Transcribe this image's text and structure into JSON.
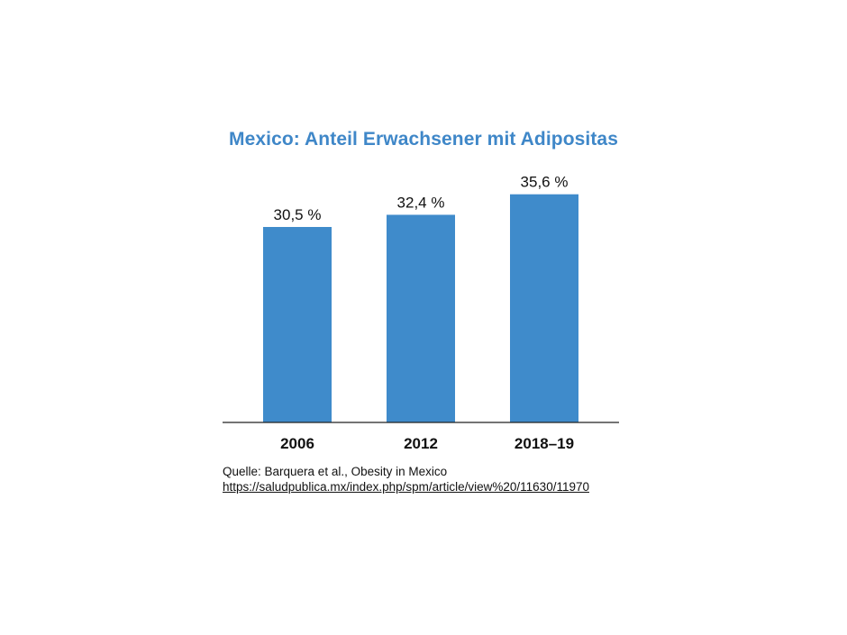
{
  "chart_data": {
    "type": "bar",
    "title": "Mexico: Anteil Erwachsener mit Adipositas",
    "categories": [
      "2006",
      "2012",
      "2018–19"
    ],
    "values": [
      30.5,
      32.4,
      35.6
    ],
    "value_labels": [
      "30,5 %",
      "32,4 %",
      "35,6 %"
    ],
    "xlabel": "",
    "ylabel": "",
    "ylim": [
      0,
      40
    ],
    "grid": false,
    "legend": "none",
    "bar_color": "#3f8bcb",
    "title_color": "#3f87c8"
  },
  "source": {
    "text": "Quelle: Barquera et al., Obesity in Mexico",
    "link": "https://saludpublica.mx/index.php/spm/article/view%20/11630/11970"
  }
}
